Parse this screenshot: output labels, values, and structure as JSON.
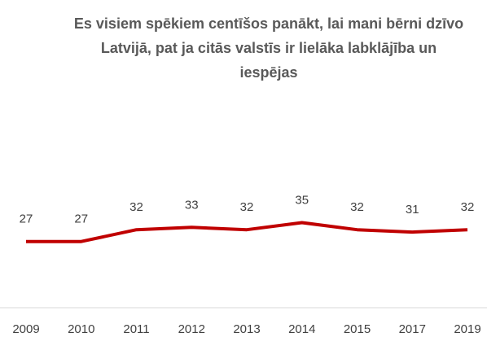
{
  "chart_data": {
    "type": "line",
    "title": "Es visiem spēkiem centīšos panākt, lai mani bērni dzīvo Latvijā, pat ja citās valstīs ir lielāka labklājība un iespējas",
    "categories": [
      "2009",
      "2010",
      "2011",
      "2012",
      "2013",
      "2014",
      "2015",
      "2017",
      "2019"
    ],
    "values": [
      27,
      27,
      32,
      33,
      32,
      35,
      32,
      31,
      32
    ],
    "color": "#c00000"
  }
}
